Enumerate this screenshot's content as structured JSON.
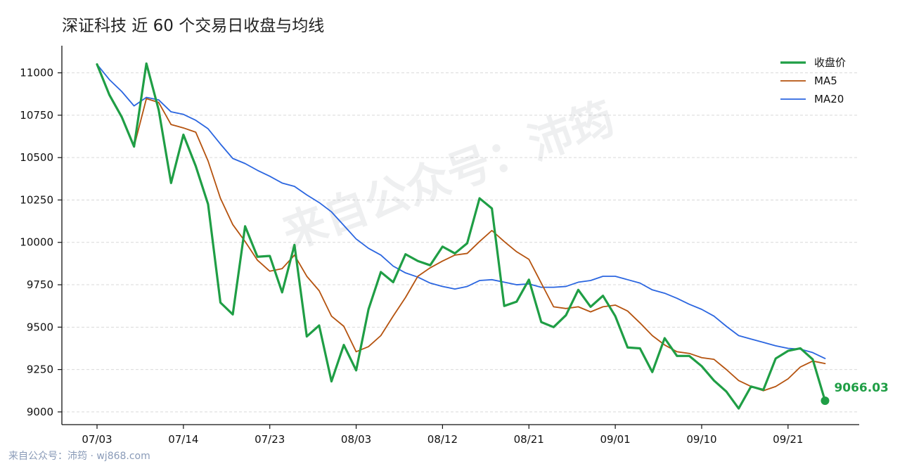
{
  "chart_data": {
    "type": "line",
    "title": "深证科技 近 60 个交易日收盘与均线",
    "xlabel": "",
    "ylabel": "",
    "ylim": [
      8925,
      11160
    ],
    "yticks": [
      9000,
      9250,
      9500,
      9750,
      10000,
      10250,
      10500,
      10750,
      11000
    ],
    "xtick_labels": [
      "07/03",
      "07/14",
      "07/23",
      "08/03",
      "08/12",
      "08/21",
      "09/01",
      "09/10",
      "09/21"
    ],
    "xtick_indices": [
      0,
      7,
      14,
      21,
      28,
      35,
      42,
      49,
      56
    ],
    "grid": "y-dashed",
    "legend_position": "top-right",
    "series": [
      {
        "name": "收盘价",
        "color": "#1f9e45",
        "values": [
          11050,
          10870,
          10740,
          10565,
          11055,
          10780,
          10350,
          10635,
          10450,
          10225,
          9645,
          9575,
          10095,
          9915,
          9920,
          9705,
          9985,
          9445,
          9510,
          9180,
          9395,
          9245,
          9605,
          9825,
          9765,
          9930,
          9890,
          9865,
          9975,
          9935,
          9995,
          10260,
          10200,
          9625,
          9650,
          9780,
          9530,
          9500,
          9570,
          9720,
          9620,
          9685,
          9565,
          9380,
          9375,
          9235,
          9435,
          9330,
          9330,
          9270,
          9185,
          9120,
          9020,
          9150,
          9130,
          9315,
          9360,
          9375,
          9310,
          9066.03
        ]
      },
      {
        "name": "MA5",
        "color": "#b5530f",
        "values": [
          11050,
          10870,
          10740,
          10565,
          10848,
          10825,
          10695,
          10675,
          10650,
          10480,
          10260,
          10105,
          10005,
          9895,
          9830,
          9845,
          9925,
          9800,
          9715,
          9565,
          9505,
          9355,
          9385,
          9450,
          9565,
          9675,
          9800,
          9850,
          9890,
          9925,
          9935,
          10005,
          10070,
          10005,
          9945,
          9900,
          9760,
          9620,
          9610,
          9620,
          9590,
          9620,
          9630,
          9595,
          9525,
          9450,
          9395,
          9355,
          9345,
          9320,
          9310,
          9250,
          9185,
          9150,
          9125,
          9150,
          9195,
          9265,
          9300,
          9285
        ]
      },
      {
        "name": "MA20",
        "color": "#2b66e0",
        "values": [
          11050,
          10960,
          10890,
          10805,
          10855,
          10840,
          10770,
          10755,
          10720,
          10670,
          10580,
          10495,
          10465,
          10425,
          10390,
          10350,
          10330,
          10280,
          10235,
          10180,
          10100,
          10020,
          9965,
          9925,
          9860,
          9820,
          9795,
          9760,
          9740,
          9725,
          9740,
          9775,
          9780,
          9765,
          9750,
          9755,
          9735,
          9735,
          9740,
          9765,
          9775,
          9800,
          9800,
          9780,
          9760,
          9720,
          9700,
          9670,
          9635,
          9605,
          9565,
          9505,
          9450,
          9430,
          9410,
          9390,
          9375,
          9370,
          9350,
          9315
        ]
      }
    ],
    "last_value_label": "9066.03"
  },
  "watermark": "来自公众号：沛筠",
  "footer": "来自公众号：沛筠 · wj868.com"
}
